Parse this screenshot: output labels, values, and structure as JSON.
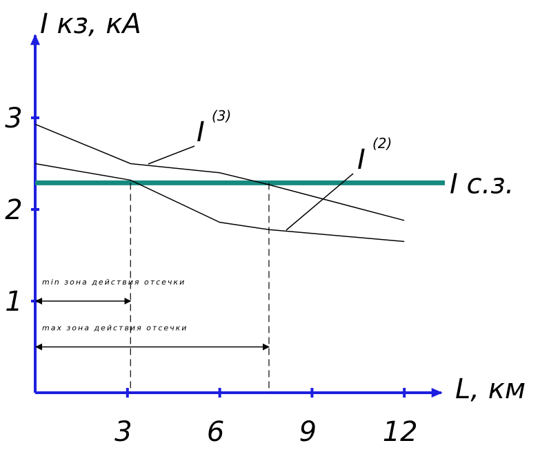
{
  "chart_data": {
    "type": "line",
    "y_label": "I кз, кА",
    "x_label": "L, км",
    "xlim": [
      0,
      13.2
    ],
    "ylim": [
      0,
      3.9
    ],
    "xticks": [
      3,
      6,
      9,
      12
    ],
    "yticks": [
      1,
      2,
      3
    ],
    "axis_color": "#1e1ee0",
    "series": [
      {
        "name": "I",
        "superscript": "(3)",
        "color": "#000000",
        "x": [
          0,
          3.1,
          6,
          7.6,
          12
        ],
        "values": [
          2.93,
          2.5,
          2.4,
          2.27,
          1.88
        ]
      },
      {
        "name": "I",
        "superscript": "(2)",
        "color": "#000000",
        "x": [
          0,
          3.1,
          6,
          7.6,
          12
        ],
        "values": [
          2.5,
          2.32,
          1.86,
          1.78,
          1.65
        ]
      }
    ],
    "threshold": {
      "name": "I с.з.",
      "value": 2.29,
      "color": "#178a80"
    },
    "zones": [
      {
        "label": "min зона действия отсечки",
        "from": 0,
        "to": 3.1,
        "y": 1
      },
      {
        "label": "max зона действия отсечки",
        "from": 0,
        "to": 7.6,
        "y": 0.5
      }
    ]
  }
}
